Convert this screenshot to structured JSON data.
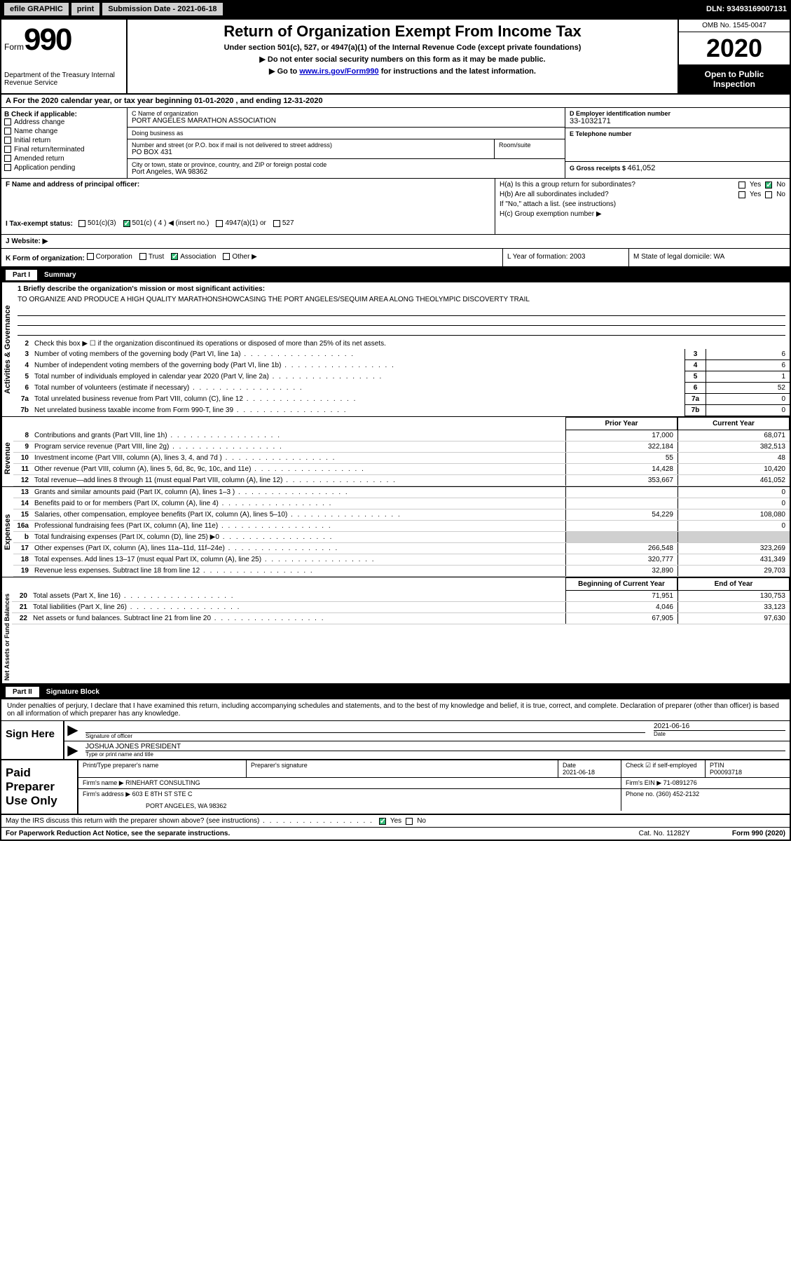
{
  "topbar": {
    "efile": "efile GRAPHIC",
    "print": "print",
    "sub_label": "Submission Date - ",
    "sub_date": "2021-06-18",
    "dln": "DLN: 93493169007131"
  },
  "header": {
    "form_word": "Form",
    "form_num": "990",
    "dept": "Department of the Treasury Internal Revenue Service",
    "title": "Return of Organization Exempt From Income Tax",
    "sub1": "Under section 501(c), 527, or 4947(a)(1) of the Internal Revenue Code (except private foundations)",
    "sub2": "Do not enter social security numbers on this form as it may be made public.",
    "sub3_pre": "Go to ",
    "sub3_link": "www.irs.gov/Form990",
    "sub3_post": " for instructions and the latest information.",
    "omb": "OMB No. 1545-0047",
    "year": "2020",
    "inspect": "Open to Public Inspection"
  },
  "period": "A For the 2020 calendar year, or tax year beginning 01-01-2020   , and ending 12-31-2020",
  "colB": {
    "label": "B Check if applicable:",
    "opts": [
      "Address change",
      "Name change",
      "Initial return",
      "Final return/terminated",
      "Amended return",
      "Application pending"
    ]
  },
  "colC": {
    "name_label": "C Name of organization",
    "name": "PORT ANGELES MARATHON ASSOCIATION",
    "dba_label": "Doing business as",
    "dba": "",
    "addr_label": "Number and street (or P.O. box if mail is not delivered to street address)",
    "addr": "PO BOX 431",
    "room_label": "Room/suite",
    "city_label": "City or town, state or province, country, and ZIP or foreign postal code",
    "city": "Port Angeles, WA  98362"
  },
  "colD": {
    "ein_label": "D Employer identification number",
    "ein": "33-1032171",
    "phone_label": "E Telephone number",
    "phone": "",
    "gross_label": "G Gross receipts $ ",
    "gross": "461,052"
  },
  "rowF": {
    "label": "F  Name and address of principal officer:",
    "val": ""
  },
  "rowH": {
    "ha": "H(a)  Is this a group return for subordinates?",
    "hb": "H(b)  Are all subordinates included?",
    "hb_note": "If \"No,\" attach a list. (see instructions)",
    "hc": "H(c)  Group exemption number ▶"
  },
  "rowI": {
    "label": "I   Tax-exempt status:",
    "opts": [
      "501(c)(3)",
      "501(c) ( 4 ) ◀ (insert no.)",
      "4947(a)(1) or",
      "527"
    ]
  },
  "rowJ": {
    "label": "J   Website: ▶"
  },
  "rowK": {
    "label": "K Form of organization:",
    "opts": [
      "Corporation",
      "Trust",
      "Association",
      "Other ▶"
    ],
    "L": "L Year of formation: 2003",
    "M": "M State of legal domicile: WA"
  },
  "partI": {
    "tag": "Part I",
    "title": "Summary"
  },
  "mission": {
    "label": "1  Briefly describe the organization's mission or most significant activities:",
    "text": "TO ORGANIZE AND PRODUCE A HIGH QUALITY MARATHONSHOWCASING THE PORT ANGELES/SEQUIM AREA ALONG THEOLYMPIC DISCOVERTY TRAIL"
  },
  "summary_lines": {
    "l2": "Check this box ▶ ☐  if the organization discontinued its operations or disposed of more than 25% of its net assets.",
    "l3": {
      "text": "Number of voting members of the governing body (Part VI, line 1a)",
      "box": "3",
      "val": "6"
    },
    "l4": {
      "text": "Number of independent voting members of the governing body (Part VI, line 1b)",
      "box": "4",
      "val": "6"
    },
    "l5": {
      "text": "Total number of individuals employed in calendar year 2020 (Part V, line 2a)",
      "box": "5",
      "val": "1"
    },
    "l6": {
      "text": "Total number of volunteers (estimate if necessary)",
      "box": "6",
      "val": "52"
    },
    "l7a": {
      "text": "Total unrelated business revenue from Part VIII, column (C), line 12",
      "box": "7a",
      "val": "0"
    },
    "l7b": {
      "text": "Net unrelated business taxable income from Form 990-T, line 39",
      "box": "7b",
      "val": "0"
    }
  },
  "col_headers": {
    "prior": "Prior Year",
    "current": "Current Year"
  },
  "revenue": [
    {
      "n": "8",
      "t": "Contributions and grants (Part VIII, line 1h)",
      "p": "17,000",
      "c": "68,071"
    },
    {
      "n": "9",
      "t": "Program service revenue (Part VIII, line 2g)",
      "p": "322,184",
      "c": "382,513"
    },
    {
      "n": "10",
      "t": "Investment income (Part VIII, column (A), lines 3, 4, and 7d )",
      "p": "55",
      "c": "48"
    },
    {
      "n": "11",
      "t": "Other revenue (Part VIII, column (A), lines 5, 6d, 8c, 9c, 10c, and 11e)",
      "p": "14,428",
      "c": "10,420"
    },
    {
      "n": "12",
      "t": "Total revenue—add lines 8 through 11 (must equal Part VIII, column (A), line 12)",
      "p": "353,667",
      "c": "461,052"
    }
  ],
  "expenses": [
    {
      "n": "13",
      "t": "Grants and similar amounts paid (Part IX, column (A), lines 1–3 )",
      "p": "",
      "c": "0"
    },
    {
      "n": "14",
      "t": "Benefits paid to or for members (Part IX, column (A), line 4)",
      "p": "",
      "c": "0"
    },
    {
      "n": "15",
      "t": "Salaries, other compensation, employee benefits (Part IX, column (A), lines 5–10)",
      "p": "54,229",
      "c": "108,080"
    },
    {
      "n": "16a",
      "t": "Professional fundraising fees (Part IX, column (A), line 11e)",
      "p": "",
      "c": "0"
    },
    {
      "n": "b",
      "t": "Total fundraising expenses (Part IX, column (D), line 25) ▶0",
      "p": "SHADE",
      "c": "SHADE"
    },
    {
      "n": "17",
      "t": "Other expenses (Part IX, column (A), lines 11a–11d, 11f–24e)",
      "p": "266,548",
      "c": "323,269"
    },
    {
      "n": "18",
      "t": "Total expenses. Add lines 13–17 (must equal Part IX, column (A), line 25)",
      "p": "320,777",
      "c": "431,349"
    },
    {
      "n": "19",
      "t": "Revenue less expenses. Subtract line 18 from line 12",
      "p": "32,890",
      "c": "29,703"
    }
  ],
  "net_headers": {
    "begin": "Beginning of Current Year",
    "end": "End of Year"
  },
  "netassets": [
    {
      "n": "20",
      "t": "Total assets (Part X, line 16)",
      "p": "71,951",
      "c": "130,753"
    },
    {
      "n": "21",
      "t": "Total liabilities (Part X, line 26)",
      "p": "4,046",
      "c": "33,123"
    },
    {
      "n": "22",
      "t": "Net assets or fund balances. Subtract line 21 from line 20",
      "p": "67,905",
      "c": "97,630"
    }
  ],
  "side_labels": {
    "ag": "Activities & Governance",
    "rev": "Revenue",
    "exp": "Expenses",
    "net": "Net Assets or Fund Balances"
  },
  "partII": {
    "tag": "Part II",
    "title": "Signature Block"
  },
  "sig": {
    "intro": "Under penalties of perjury, I declare that I have examined this return, including accompanying schedules and statements, and to the best of my knowledge and belief, it is true, correct, and complete. Declaration of preparer (other than officer) is based on all information of which preparer has any knowledge.",
    "sign_here": "Sign Here",
    "sig_label": "Signature of officer",
    "date_label": "Date",
    "date": "2021-06-16",
    "name": "JOSHUA JONES  PRESIDENT",
    "name_label": "Type or print name and title"
  },
  "paid": {
    "label": "Paid Preparer Use Only",
    "h1": "Print/Type preparer's name",
    "h2": "Preparer's signature",
    "h3": "Date",
    "h3v": "2021-06-18",
    "h4": "Check ☑ if self-employed",
    "h5": "PTIN",
    "h5v": "P00093718",
    "firm_name_l": "Firm's name    ▶",
    "firm_name": "RINEHART CONSULTING",
    "firm_ein_l": "Firm's EIN ▶",
    "firm_ein": "71-0891276",
    "firm_addr_l": "Firm's address ▶",
    "firm_addr1": "603 E 8TH ST STE C",
    "firm_addr2": "PORT ANGELES, WA  98362",
    "phone_l": "Phone no.",
    "phone": "(360) 452-2132"
  },
  "footer": {
    "discuss": "May the IRS discuss this return with the preparer shown above? (see instructions)",
    "paperwork": "For Paperwork Reduction Act Notice, see the separate instructions.",
    "cat": "Cat. No. 11282Y",
    "form": "Form 990 (2020)"
  },
  "yn": {
    "yes": "Yes",
    "no": "No"
  }
}
